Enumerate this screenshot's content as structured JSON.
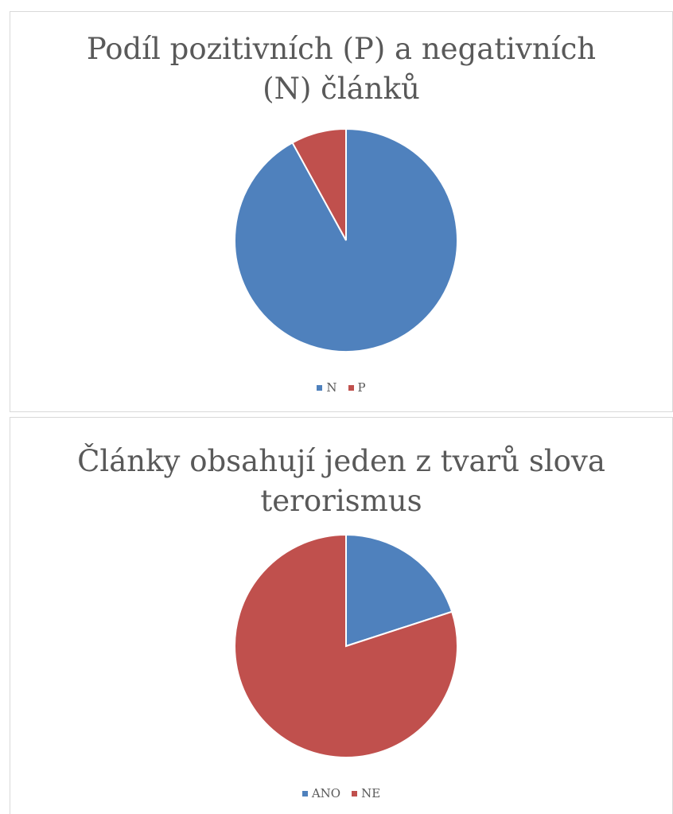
{
  "chart_data": [
    {
      "type": "pie",
      "title": "Podíl pozitivních (P) a negativních (N) článků",
      "title_lines": [
        "Podíl pozitivních (P) a negativních",
        "(N) článků"
      ],
      "categories": [
        "N",
        "P"
      ],
      "values": [
        92,
        8
      ],
      "colors": [
        "#4f81bd",
        "#c0504d"
      ],
      "start_angle_deg": 0,
      "direction": "clockwise",
      "legend_position": "bottom"
    },
    {
      "type": "pie",
      "title": "Články obsahují jeden z tvarů slova terorismus",
      "title_lines": [
        "Články obsahují jeden z tvarů slova",
        "terorismus"
      ],
      "categories": [
        "ANO",
        "NE"
      ],
      "values": [
        20,
        80
      ],
      "colors": [
        "#4f81bd",
        "#c0504d"
      ],
      "start_angle_deg": 0,
      "direction": "clockwise",
      "legend_position": "bottom"
    }
  ]
}
